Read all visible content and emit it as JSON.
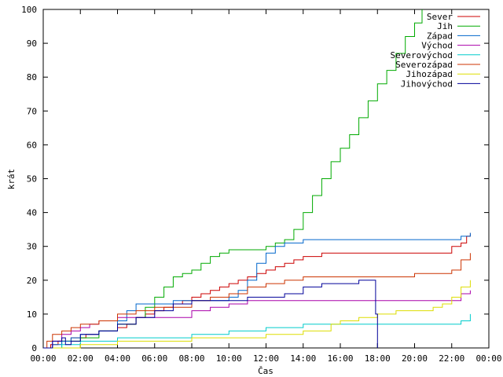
{
  "chart_data": {
    "type": "line",
    "title": "",
    "xlabel": "Čas",
    "ylabel": "krát",
    "xlim": [
      0,
      24
    ],
    "ylim": [
      0,
      100
    ],
    "x_ticks": [
      "00:00",
      "02:00",
      "04:00",
      "06:00",
      "08:00",
      "10:00",
      "12:00",
      "14:00",
      "16:00",
      "18:00",
      "20:00",
      "22:00",
      "00:00"
    ],
    "y_ticks": [
      0,
      10,
      20,
      30,
      40,
      50,
      60,
      70,
      80,
      90,
      100
    ],
    "grid": false,
    "legend_position": "top-right",
    "series": [
      {
        "name": "Sever",
        "color": "#cc0000",
        "step": true,
        "x": [
          0,
          0.4,
          0.8,
          1.5,
          2.3,
          3.0,
          4.0,
          4.5,
          5.0,
          5.5,
          6.0,
          6.5,
          7.0,
          7.5,
          8.0,
          8.5,
          9.0,
          9.5,
          10.0,
          10.5,
          11.0,
          11.5,
          12.0,
          12.5,
          13.0,
          13.5,
          14.0,
          14.5,
          15.0,
          16.0,
          17.0,
          18.0,
          19.0,
          20.0,
          21.0,
          22.0,
          22.5,
          22.8,
          23.0
        ],
        "y": [
          0,
          1,
          2,
          3,
          4,
          5,
          6,
          7,
          9,
          10,
          11,
          12,
          13,
          14,
          15,
          16,
          17,
          18,
          19,
          20,
          21,
          22,
          23,
          24,
          25,
          26,
          27,
          27,
          28,
          28,
          28,
          28,
          28,
          28,
          28,
          30,
          31,
          33,
          34
        ]
      },
      {
        "name": "Jih",
        "color": "#00aa00",
        "step": true,
        "x": [
          0,
          1.0,
          2.0,
          3.0,
          4.0,
          5.0,
          5.5,
          6.0,
          6.5,
          7.0,
          7.5,
          8.0,
          8.5,
          9.0,
          9.5,
          10.0,
          11.0,
          12.0,
          12.5,
          13.0,
          13.5,
          14.0,
          14.5,
          15.0,
          15.5,
          16.0,
          16.5,
          17.0,
          17.5,
          18.0,
          18.5,
          19.0,
          19.5,
          20.0,
          20.4
        ],
        "y": [
          0,
          2,
          3,
          5,
          7,
          9,
          12,
          15,
          18,
          21,
          22,
          23,
          25,
          27,
          28,
          29,
          29,
          30,
          31,
          32,
          35,
          40,
          45,
          50,
          55,
          59,
          63,
          68,
          73,
          78,
          82,
          87,
          92,
          96,
          100
        ]
      },
      {
        "name": "Západ",
        "color": "#0066cc",
        "step": true,
        "x": [
          0,
          0.5,
          1.0,
          1.5,
          2.0,
          3.0,
          4.0,
          4.5,
          5.0,
          6.0,
          7.0,
          8.0,
          9.0,
          10.0,
          10.5,
          11.0,
          11.5,
          12.0,
          12.5,
          13.0,
          14.0,
          16.0,
          18.0,
          20.0,
          22.0,
          22.5,
          23.0
        ],
        "y": [
          0,
          1,
          2,
          3,
          4,
          5,
          8,
          11,
          13,
          13,
          14,
          14,
          14,
          15,
          17,
          20,
          25,
          28,
          30,
          31,
          32,
          32,
          32,
          32,
          32,
          33,
          34
        ]
      },
      {
        "name": "Východ",
        "color": "#aa00aa",
        "step": true,
        "x": [
          0,
          0.5,
          1.0,
          1.5,
          2.0,
          2.5,
          3.0,
          4.0,
          5.0,
          6.0,
          7.0,
          8.0,
          9.0,
          10.0,
          11.0,
          12.0,
          13.0,
          14.0,
          15.0,
          16.0,
          18.0,
          20.0,
          22.0,
          22.5,
          23.0
        ],
        "y": [
          0,
          2,
          4,
          5,
          6,
          7,
          8,
          9,
          9,
          9,
          9,
          11,
          12,
          13,
          14,
          14,
          14,
          14,
          14,
          14,
          14,
          14,
          14,
          16,
          17
        ]
      },
      {
        "name": "Severovýchod",
        "color": "#00cccc",
        "step": true,
        "x": [
          0,
          1.0,
          2.0,
          4.0,
          6.0,
          8.0,
          10.0,
          12.0,
          14.0,
          16.0,
          18.0,
          20.0,
          21.0,
          22.0,
          22.5,
          23.0
        ],
        "y": [
          0,
          1,
          2,
          3,
          3,
          4,
          5,
          6,
          7,
          7,
          7,
          7,
          7,
          7,
          8,
          10
        ]
      },
      {
        "name": "Severozápad",
        "color": "#cc3300",
        "step": true,
        "x": [
          0,
          0.2,
          0.5,
          1.0,
          1.5,
          2.0,
          3.0,
          4.0,
          5.0,
          6.0,
          7.0,
          8.0,
          9.0,
          10.0,
          11.0,
          12.0,
          13.0,
          14.0,
          16.0,
          18.0,
          20.0,
          21.0,
          22.0,
          22.5,
          23.0
        ],
        "y": [
          0,
          2,
          4,
          5,
          6,
          7,
          8,
          10,
          11,
          12,
          12,
          14,
          15,
          16,
          18,
          19,
          20,
          21,
          21,
          21,
          22,
          22,
          23,
          26,
          28
        ]
      },
      {
        "name": "Jihozápad",
        "color": "#dddd00",
        "step": true,
        "x": [
          0,
          2.0,
          4.0,
          6.0,
          8.0,
          10.0,
          12.0,
          14.0,
          15.5,
          16.0,
          17.0,
          18.0,
          19.0,
          20.0,
          21.0,
          21.5,
          22.0,
          22.5,
          23.0
        ],
        "y": [
          0,
          1,
          2,
          2,
          3,
          3,
          4,
          5,
          7,
          8,
          9,
          10,
          11,
          11,
          12,
          13,
          15,
          18,
          20
        ]
      },
      {
        "name": "Jihovýchod",
        "color": "#000099",
        "step": true,
        "x": [
          0,
          0.5,
          1.0,
          1.2,
          1.5,
          2.0,
          3.0,
          4.0,
          5.0,
          6.0,
          7.0,
          8.0,
          9.0,
          10.0,
          11.0,
          12.0,
          13.0,
          14.0,
          15.0,
          16.0,
          17.0,
          17.8,
          17.9,
          18.0
        ],
        "y": [
          0,
          2,
          3,
          1,
          2,
          4,
          5,
          7,
          9,
          11,
          13,
          14,
          14,
          14,
          15,
          15,
          16,
          18,
          19,
          19,
          20,
          20,
          10,
          0
        ]
      }
    ]
  }
}
